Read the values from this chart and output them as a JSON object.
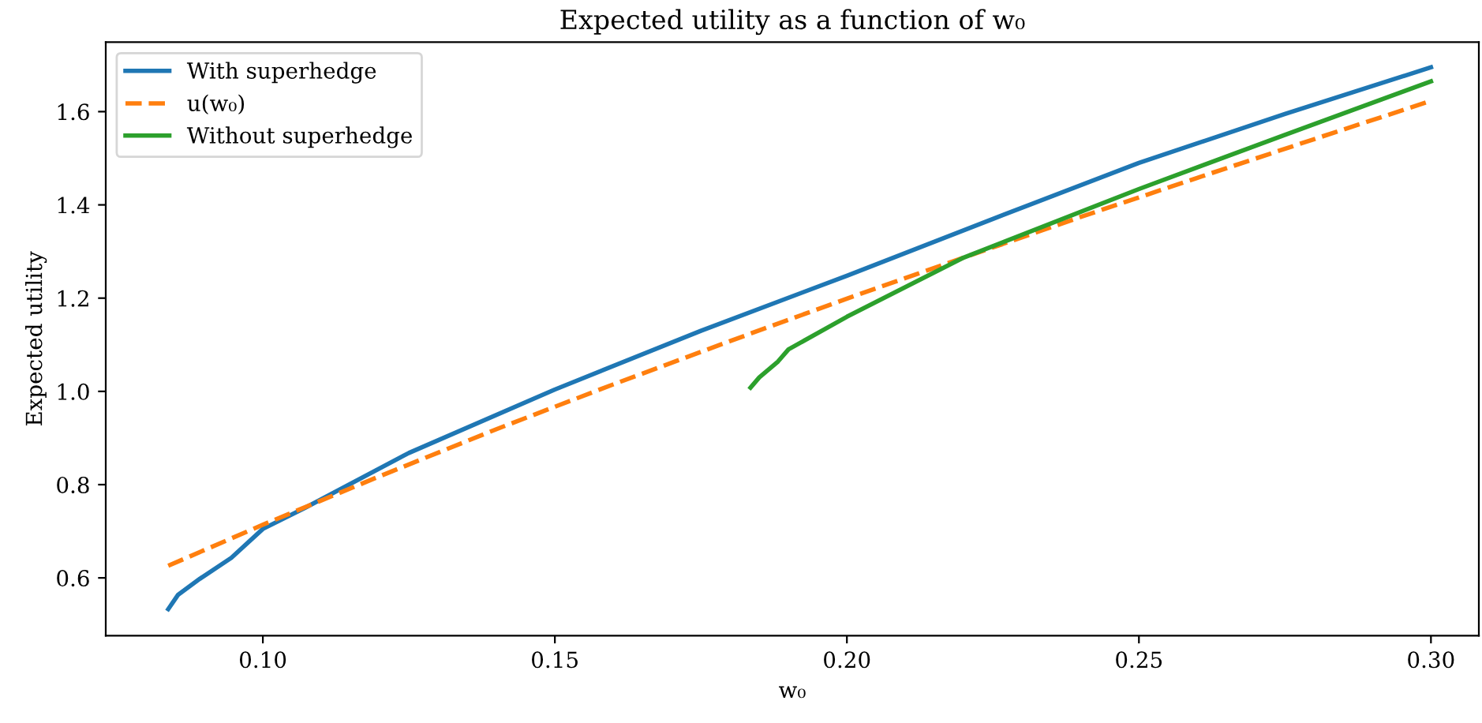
{
  "chart_data": {
    "type": "line",
    "title": "Expected utility as a function of w₀",
    "xlabel": "w₀",
    "ylabel": "Expected utility",
    "xlim": [
      0.0731,
      0.3082
    ],
    "ylim": [
      0.476,
      1.749
    ],
    "xticks": [
      {
        "value": 0.1,
        "label": "0.10"
      },
      {
        "value": 0.15,
        "label": "0.15"
      },
      {
        "value": 0.2,
        "label": "0.20"
      },
      {
        "value": 0.25,
        "label": "0.25"
      },
      {
        "value": 0.3,
        "label": "0.30"
      }
    ],
    "yticks": [
      {
        "value": 0.6,
        "label": "0.6"
      },
      {
        "value": 0.8,
        "label": "0.8"
      },
      {
        "value": 1.0,
        "label": "1.0"
      },
      {
        "value": 1.2,
        "label": "1.2"
      },
      {
        "value": 1.4,
        "label": "1.4"
      },
      {
        "value": 1.6,
        "label": "1.6"
      }
    ],
    "grid": false,
    "legend": "top left",
    "marker": "none",
    "series": [
      {
        "name": "With superhedge",
        "color": "#1f77b4",
        "line_style": "solid",
        "x": [
          0.0838,
          0.0855,
          0.0892,
          0.0946,
          0.1,
          0.1072,
          0.125,
          0.15,
          0.175,
          0.2,
          0.225,
          0.25,
          0.275,
          0.3
        ],
        "values": [
          0.533,
          0.564,
          0.598,
          0.643,
          0.705,
          0.75,
          0.868,
          1.004,
          1.13,
          1.248,
          1.37,
          1.49,
          1.595,
          1.695
        ]
      },
      {
        "name": "u(w₀)",
        "color": "#ff7f0e",
        "line_style": "dashed",
        "x": [
          0.0838,
          0.1,
          0.12,
          0.14,
          0.16,
          0.18,
          0.2,
          0.22,
          0.24,
          0.26,
          0.28,
          0.3
        ],
        "values": [
          0.626,
          0.714,
          0.818,
          0.919,
          1.015,
          1.108,
          1.199,
          1.287,
          1.374,
          1.458,
          1.541,
          1.623
        ]
      },
      {
        "name": "Without superhedge",
        "color": "#2ca02c",
        "line_style": "solid",
        "x": [
          0.1835,
          0.185,
          0.1882,
          0.19,
          0.2,
          0.22,
          0.25,
          0.275,
          0.3
        ],
        "values": [
          1.008,
          1.03,
          1.064,
          1.09,
          1.16,
          1.287,
          1.434,
          1.55,
          1.665
        ]
      }
    ]
  }
}
